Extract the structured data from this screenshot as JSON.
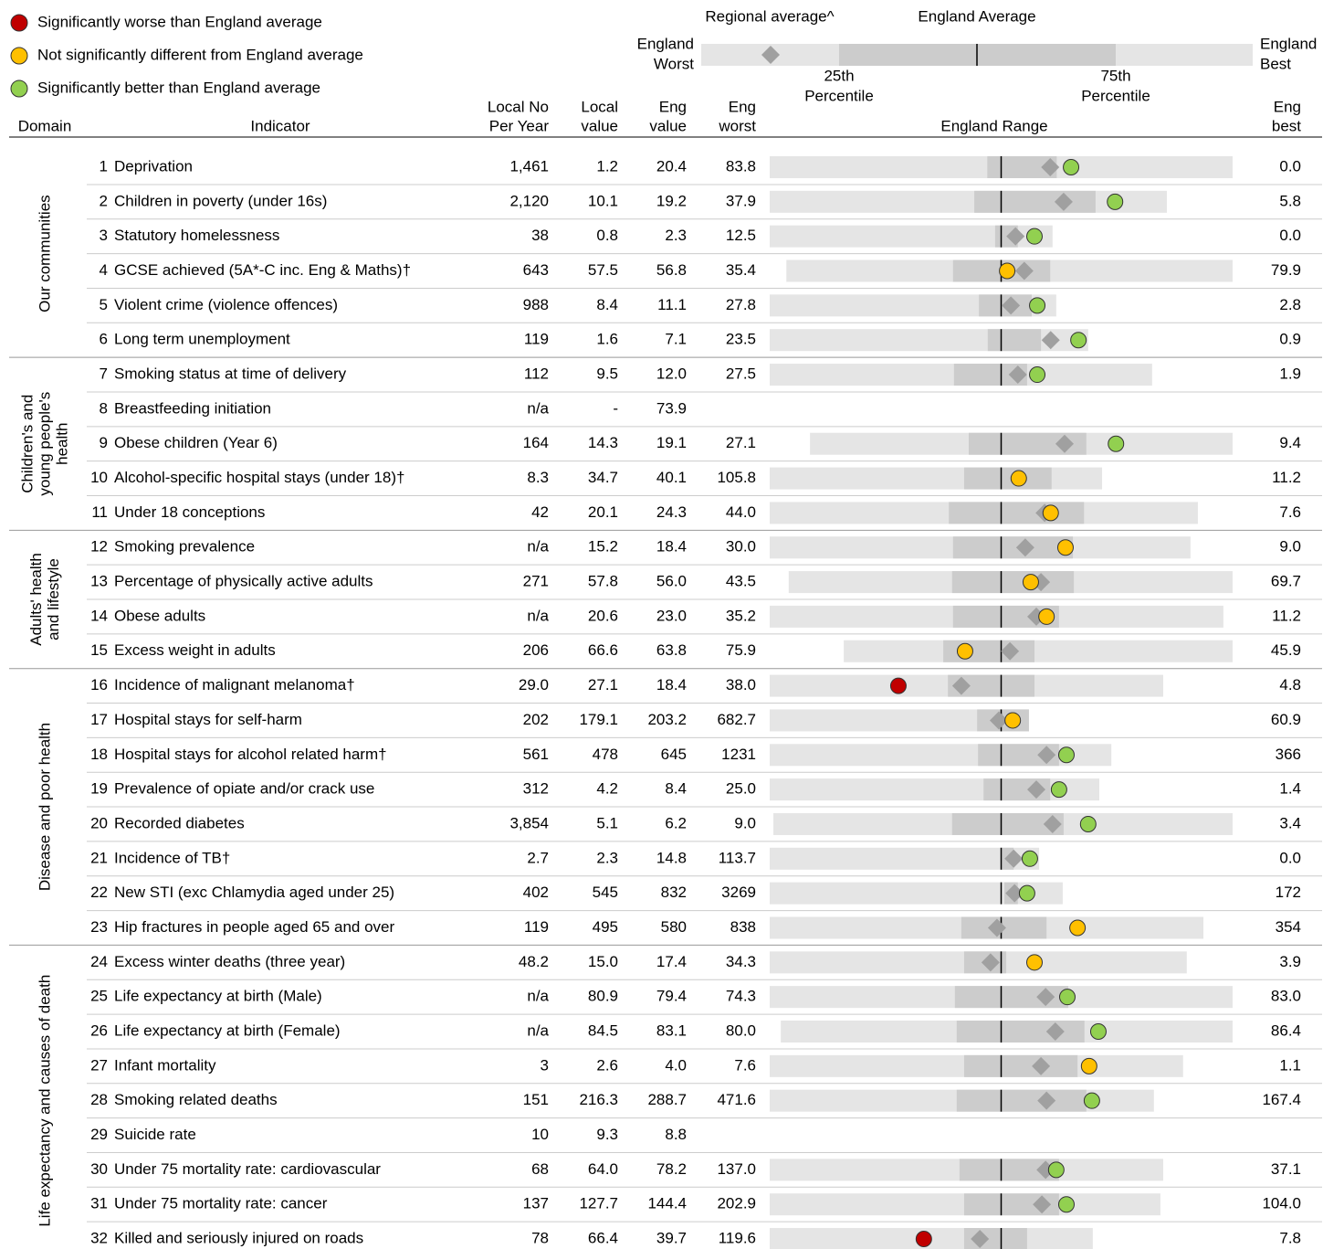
{
  "legend": [
    {
      "sig": "worse",
      "color": "#c00000",
      "label": "Significantly worse than England average"
    },
    {
      "sig": "same",
      "color": "#ffc000",
      "label": "Not significantly different from England average"
    },
    {
      "sig": "better",
      "color": "#92d050",
      "label": "Significantly better than England average"
    }
  ],
  "key": {
    "regional": "Regional average^",
    "average": "England Average",
    "worst": [
      "England",
      "Worst"
    ],
    "best": [
      "England",
      "Best"
    ],
    "q1": [
      "25th",
      "Percentile"
    ],
    "q3": [
      "75th",
      "Percentile"
    ]
  },
  "header": {
    "columns": [
      {
        "lines": [
          "Domain"
        ]
      },
      {
        "lines": [
          "Indicator"
        ]
      },
      {
        "lines": [
          "Local No",
          "Per Year"
        ]
      },
      {
        "lines": [
          "Local",
          "value"
        ]
      },
      {
        "lines": [
          "Eng",
          "value"
        ]
      },
      {
        "lines": [
          "Eng",
          "worst"
        ]
      },
      {
        "lines": [
          "England Range"
        ]
      },
      {
        "lines": [
          "Eng",
          "best"
        ]
      }
    ]
  },
  "domains": [
    {
      "lines": [
        "Our communities"
      ],
      "rows": [
        0,
        5
      ]
    },
    {
      "lines": [
        "Children's and",
        "young people's",
        "health"
      ],
      "rows": [
        6,
        10
      ]
    },
    {
      "lines": [
        "Adults' health",
        "and lifestyle"
      ],
      "rows": [
        11,
        14
      ]
    },
    {
      "lines": [
        "Disease and poor health"
      ],
      "rows": [
        15,
        22
      ]
    },
    {
      "lines": [
        "Life expectancy and causes of death"
      ],
      "rows": [
        23,
        31
      ]
    }
  ],
  "rows": [
    {
      "num": "1",
      "indicator": "Deprivation",
      "local_no": "1,461",
      "local_value": "1.2",
      "eng_value": "20.4",
      "eng_worst": "83.8",
      "eng_best": "0.0",
      "spine": {
        "range": [
          0,
          100
        ],
        "quartiles": [
          47,
          62
        ],
        "regional": 60.6,
        "local": 65.1,
        "sig": "better"
      }
    },
    {
      "num": "2",
      "indicator": "Children in poverty (under 16s)",
      "local_no": "2,120",
      "local_value": "10.1",
      "eng_value": "19.2",
      "eng_worst": "37.9",
      "eng_best": "5.8",
      "spine": {
        "range": [
          0,
          85.8
        ],
        "quartiles": [
          44.2,
          70.4
        ],
        "regional": 63.5,
        "local": 74.6,
        "sig": "better"
      }
    },
    {
      "num": "3",
      "indicator": "Statutory homelessness",
      "local_no": "38",
      "local_value": "0.8",
      "eng_value": "2.3",
      "eng_worst": "12.5",
      "eng_best": "0.0",
      "spine": {
        "range": [
          0,
          61.1
        ],
        "quartiles": [
          48.7,
          53.6
        ],
        "regional": 53.1,
        "local": 57.2,
        "sig": "better"
      }
    },
    {
      "num": "4",
      "indicator": "GCSE achieved (5A*-C inc. Eng & Maths)†",
      "local_no": "643",
      "local_value": "57.5",
      "eng_value": "56.8",
      "eng_worst": "35.4",
      "eng_best": "79.9",
      "spine": {
        "range": [
          3.6,
          100
        ],
        "quartiles": [
          39.6,
          60.6
        ],
        "regional": 55,
        "local": 51.3,
        "sig": "same"
      }
    },
    {
      "num": "5",
      "indicator": "Violent crime (violence offences)",
      "local_no": "988",
      "local_value": "8.4",
      "eng_value": "11.1",
      "eng_worst": "27.8",
      "eng_best": "2.8",
      "spine": {
        "range": [
          0,
          61.9
        ],
        "quartiles": [
          45.2,
          56.6
        ],
        "regional": 52.1,
        "local": 57.8,
        "sig": "better"
      }
    },
    {
      "num": "6",
      "indicator": "Long term unemployment",
      "local_no": "119",
      "local_value": "1.6",
      "eng_value": "7.1",
      "eng_worst": "23.5",
      "eng_best": "0.9",
      "spine": {
        "range": [
          0,
          68.8
        ],
        "quartiles": [
          47.1,
          58.6
        ],
        "regional": 60.7,
        "local": 66.7,
        "sig": "better"
      }
    },
    {
      "num": "7",
      "indicator": "Smoking status at time of delivery",
      "local_no": "112",
      "local_value": "9.5",
      "eng_value": "12.0",
      "eng_worst": "27.5",
      "eng_best": "1.9",
      "spine": {
        "range": [
          0,
          82.6
        ],
        "quartiles": [
          39.8,
          55.6
        ],
        "regional": 53.6,
        "local": 57.8,
        "sig": "better"
      }
    },
    {
      "num": "8",
      "indicator": "Breastfeeding initiation",
      "local_no": "n/a",
      "local_value": "-",
      "eng_value": "73.9",
      "eng_worst": null,
      "eng_best": null,
      "spine": null
    },
    {
      "num": "9",
      "indicator": "Obese children (Year 6)",
      "local_no": "164",
      "local_value": "14.3",
      "eng_value": "19.1",
      "eng_worst": "27.1",
      "eng_best": "9.4",
      "spine": {
        "range": [
          8.7,
          100
        ],
        "quartiles": [
          43,
          68.4
        ],
        "regional": 63.7,
        "local": 74.8,
        "sig": "better"
      }
    },
    {
      "num": "10",
      "indicator": "Alcohol-specific hospital stays (under 18)†",
      "local_no": "8.3",
      "local_value": "34.7",
      "eng_value": "40.1",
      "eng_worst": "105.8",
      "eng_best": "11.2",
      "spine": {
        "range": [
          0,
          71.8
        ],
        "quartiles": [
          42,
          60.9
        ],
        "regional": null,
        "local": 53.8,
        "sig": "same"
      }
    },
    {
      "num": "11",
      "indicator": "Under 18 conceptions",
      "local_no": "42",
      "local_value": "20.1",
      "eng_value": "24.3",
      "eng_worst": "44.0",
      "eng_best": "7.6",
      "spine": {
        "range": [
          0,
          92.5
        ],
        "quartiles": [
          38.7,
          67.9
        ],
        "regional": 59.4,
        "local": 60.7,
        "sig": "same"
      }
    },
    {
      "num": "12",
      "indicator": "Smoking prevalence",
      "local_no": "n/a",
      "local_value": "15.2",
      "eng_value": "18.4",
      "eng_worst": "30.0",
      "eng_best": "9.0",
      "spine": {
        "range": [
          0,
          90.9
        ],
        "quartiles": [
          39.6,
          65.5
        ],
        "regional": 55.2,
        "local": 63.9,
        "sig": "same"
      }
    },
    {
      "num": "13",
      "indicator": "Percentage of physically active adults",
      "local_no": "271",
      "local_value": "57.8",
      "eng_value": "56.0",
      "eng_worst": "43.5",
      "eng_best": "69.7",
      "spine": {
        "range": [
          4.1,
          100
        ],
        "quartiles": [
          39.4,
          65.7
        ],
        "regional": 58.6,
        "local": 56.4,
        "sig": "same"
      }
    },
    {
      "num": "14",
      "indicator": "Obese adults",
      "local_no": "n/a",
      "local_value": "20.6",
      "eng_value": "23.0",
      "eng_worst": "35.2",
      "eng_best": "11.2",
      "spine": {
        "range": [
          0,
          98
        ],
        "quartiles": [
          39.6,
          62.5
        ],
        "regional": 57.6,
        "local": 59.8,
        "sig": "same"
      }
    },
    {
      "num": "15",
      "indicator": "Excess weight in adults",
      "local_no": "206",
      "local_value": "66.6",
      "eng_value": "63.8",
      "eng_worst": "75.9",
      "eng_best": "45.9",
      "spine": {
        "range": [
          16,
          100
        ],
        "quartiles": [
          37.5,
          57.2
        ],
        "regional": 51.9,
        "local": 42.2,
        "sig": "same"
      }
    },
    {
      "num": "16",
      "indicator": "Incidence of malignant melanoma†",
      "local_no": "29.0",
      "local_value": "27.1",
      "eng_value": "18.4",
      "eng_worst": "38.0",
      "eng_best": "4.8",
      "spine": {
        "range": [
          0,
          85
        ],
        "quartiles": [
          38.5,
          57.2
        ],
        "regional": 41.4,
        "local": 27.8,
        "sig": "worse"
      }
    },
    {
      "num": "17",
      "indicator": "Hospital stays for self-harm",
      "local_no": "202",
      "local_value": "179.1",
      "eng_value": "203.2",
      "eng_worst": "682.7",
      "eng_best": "60.9",
      "spine": {
        "range": [
          0,
          56
        ],
        "quartiles": [
          44.8,
          56
        ],
        "regional": 49.5,
        "local": 52.5,
        "sig": "same"
      }
    },
    {
      "num": "18",
      "indicator": "Hospital stays for alcohol related harm†",
      "local_no": "561",
      "local_value": "478",
      "eng_value": "645",
      "eng_worst": "1231",
      "eng_best": "366",
      "spine": {
        "range": [
          0,
          73.8
        ],
        "quartiles": [
          45,
          62.5
        ],
        "regional": 59.8,
        "local": 64.1,
        "sig": "better"
      }
    },
    {
      "num": "19",
      "indicator": "Prevalence of opiate and/or crack use",
      "local_no": "312",
      "local_value": "4.2",
      "eng_value": "8.4",
      "eng_worst": "25.0",
      "eng_best": "1.4",
      "spine": {
        "range": [
          0,
          71.2
        ],
        "quartiles": [
          46.2,
          60.6
        ],
        "regional": 57.6,
        "local": 62.5,
        "sig": "better"
      }
    },
    {
      "num": "20",
      "indicator": "Recorded diabetes",
      "local_no": "3,854",
      "local_value": "5.1",
      "eng_value": "6.2",
      "eng_worst": "9.0",
      "eng_best": "3.4",
      "spine": {
        "range": [
          0.8,
          100
        ],
        "quartiles": [
          39.4,
          63.5
        ],
        "regional": 61.1,
        "local": 68.8,
        "sig": "better"
      }
    },
    {
      "num": "21",
      "indicator": "Incidence of TB†",
      "local_no": "2.7",
      "local_value": "2.3",
      "eng_value": "14.8",
      "eng_worst": "113.7",
      "eng_best": "0.0",
      "spine": {
        "range": [
          0,
          58.2
        ],
        "quartiles": [
          50,
          52.7
        ],
        "regional": 52.7,
        "local": 56.2,
        "sig": "better"
      }
    },
    {
      "num": "22",
      "indicator": "New STI (exc Chlamydia aged under 25)",
      "local_no": "402",
      "local_value": "545",
      "eng_value": "832",
      "eng_worst": "3269",
      "eng_best": "172",
      "spine": {
        "range": [
          0,
          63.3
        ],
        "quartiles": [
          50.7,
          53.6
        ],
        "regional": 52.9,
        "local": 55.6,
        "sig": "better"
      }
    },
    {
      "num": "23",
      "indicator": "Hip fractures in people aged 65 and over",
      "local_no": "119",
      "local_value": "495",
      "eng_value": "580",
      "eng_worst": "838",
      "eng_best": "354",
      "spine": {
        "range": [
          0,
          93.7
        ],
        "quartiles": [
          41.4,
          59.8
        ],
        "regional": 49.1,
        "local": 66.5,
        "sig": "same"
      }
    },
    {
      "num": "24",
      "indicator": "Excess winter deaths (three year)",
      "local_no": "48.2",
      "local_value": "15.0",
      "eng_value": "17.4",
      "eng_worst": "34.3",
      "eng_best": "3.9",
      "spine": {
        "range": [
          0,
          90.1
        ],
        "quartiles": [
          42,
          51.1
        ],
        "regional": 47.7,
        "local": 57.2,
        "sig": "same"
      }
    },
    {
      "num": "25",
      "indicator": "Life expectancy at birth (Male)",
      "local_no": "n/a",
      "local_value": "80.9",
      "eng_value": "79.4",
      "eng_worst": "74.3",
      "eng_best": "83.0",
      "spine": {
        "range": [
          0,
          100
        ],
        "quartiles": [
          40,
          64.5
        ],
        "regional": 59.6,
        "local": 64.3,
        "sig": "better"
      }
    },
    {
      "num": "26",
      "indicator": "Life expectancy at birth (Female)",
      "local_no": "n/a",
      "local_value": "84.5",
      "eng_value": "83.1",
      "eng_worst": "80.0",
      "eng_best": "86.4",
      "spine": {
        "range": [
          2.4,
          100
        ],
        "quartiles": [
          40.4,
          68
        ],
        "regional": 61.7,
        "local": 71,
        "sig": "better"
      }
    },
    {
      "num": "27",
      "indicator": "Infant mortality",
      "local_no": "3",
      "local_value": "2.6",
      "eng_value": "4.0",
      "eng_worst": "7.6",
      "eng_best": "1.1",
      "spine": {
        "range": [
          0,
          89.3
        ],
        "quartiles": [
          42,
          66.5
        ],
        "regional": 58.6,
        "local": 69,
        "sig": "same"
      }
    },
    {
      "num": "28",
      "indicator": "Smoking related deaths",
      "local_no": "151",
      "local_value": "216.3",
      "eng_value": "288.7",
      "eng_worst": "471.6",
      "eng_best": "167.4",
      "spine": {
        "range": [
          0,
          83
        ],
        "quartiles": [
          40.4,
          68.4
        ],
        "regional": 59.8,
        "local": 69.6,
        "sig": "better"
      }
    },
    {
      "num": "29",
      "indicator": "Suicide rate",
      "local_no": "10",
      "local_value": "9.3",
      "eng_value": "8.8",
      "eng_worst": null,
      "eng_best": null,
      "spine": null
    },
    {
      "num": "30",
      "indicator": "Under 75 mortality rate: cardiovascular",
      "local_no": "68",
      "local_value": "64.0",
      "eng_value": "78.2",
      "eng_worst": "137.0",
      "eng_best": "37.1",
      "spine": {
        "range": [
          0,
          85
        ],
        "quartiles": [
          41,
          62.5
        ],
        "regional": 59.6,
        "local": 61.9,
        "sig": "better"
      }
    },
    {
      "num": "31",
      "indicator": "Under 75 mortality rate: cancer",
      "local_no": "137",
      "local_value": "127.7",
      "eng_value": "144.4",
      "eng_worst": "202.9",
      "eng_best": "104.0",
      "spine": {
        "range": [
          0,
          84.4
        ],
        "quartiles": [
          42,
          62.5
        ],
        "regional": 58.8,
        "local": 64.1,
        "sig": "better"
      }
    },
    {
      "num": "32",
      "indicator": "Killed and seriously injured on roads",
      "local_no": "78",
      "local_value": "66.4",
      "eng_value": "39.7",
      "eng_worst": "119.6",
      "eng_best": "7.8",
      "spine": {
        "range": [
          0,
          69.8
        ],
        "quartiles": [
          42,
          55.6
        ],
        "regional": 45.4,
        "local": 33.3,
        "sig": "worse"
      }
    }
  ]
}
